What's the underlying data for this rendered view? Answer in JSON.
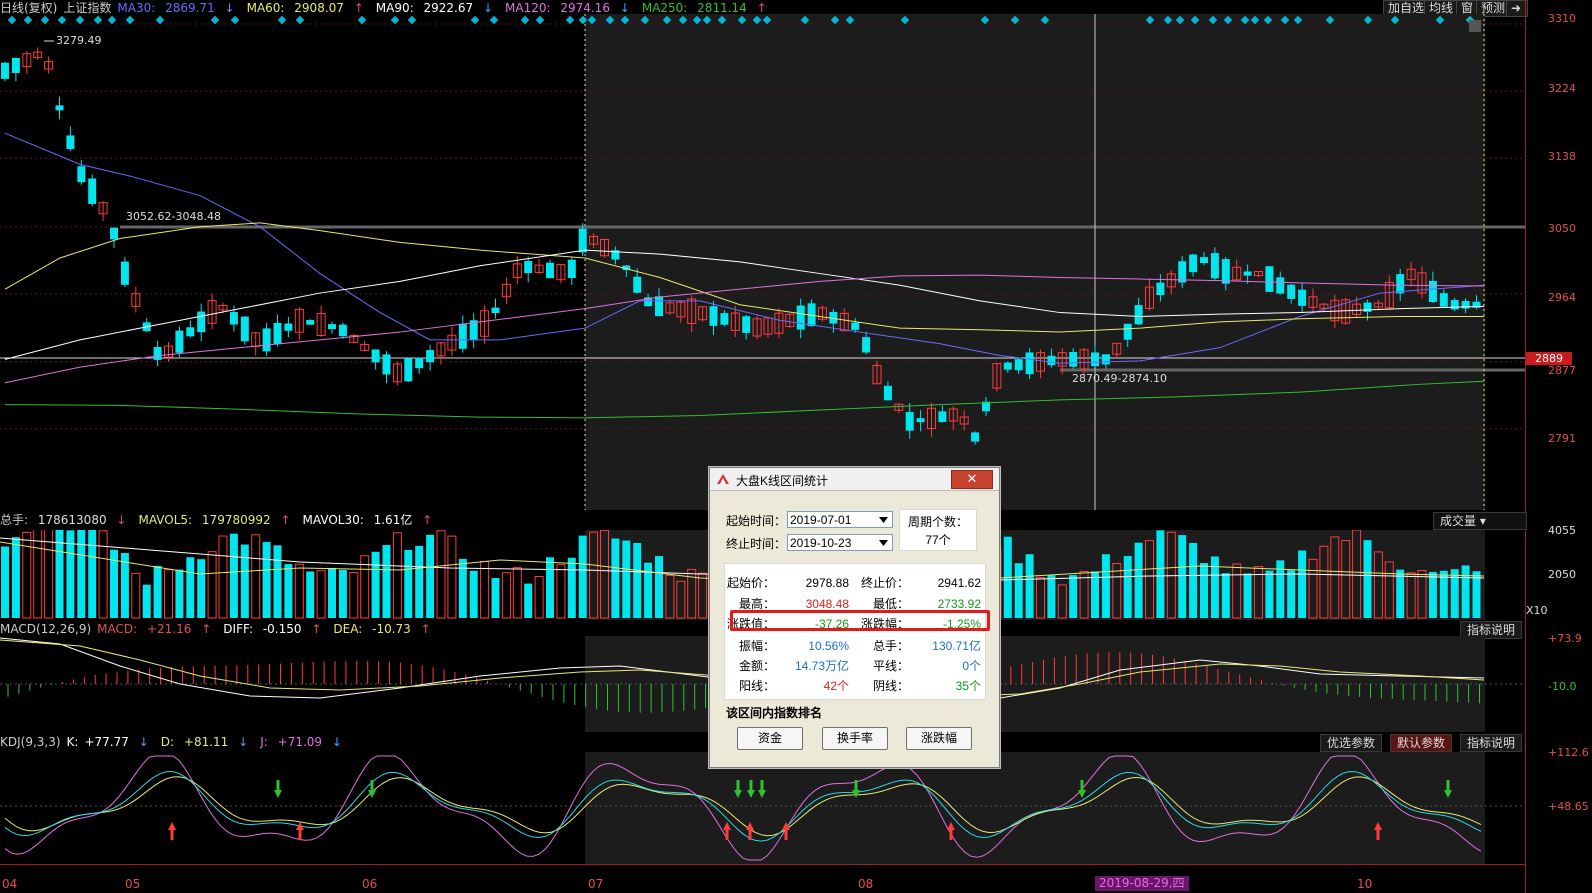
{
  "header": {
    "chart_title": "日线(复权)",
    "index_name": "上证指数",
    "ma": [
      {
        "label": "MA30:",
        "value": "2869.71",
        "dir": "↓",
        "color": "#6a6aff"
      },
      {
        "label": "MA60:",
        "value": "2908.07",
        "dir": "↑",
        "color": "#e8e870"
      },
      {
        "label": "MA90:",
        "value": "2922.67",
        "dir": "↓",
        "color": "#ffffff"
      },
      {
        "label": "MA120:",
        "value": "2974.16",
        "dir": "↓",
        "color": "#e070e0"
      },
      {
        "label": "MA250:",
        "value": "2811.14",
        "dir": "↑",
        "color": "#30c030"
      }
    ],
    "buttons": {
      "add_watch": "加自选",
      "avg_line": "均线",
      "window": "窗",
      "forecast": "预测"
    }
  },
  "price_axis": [
    "3310",
    "3224",
    "3138",
    "3050",
    "2964",
    "2889",
    "2877",
    "2791"
  ],
  "price_annotations": {
    "high": "3279.49",
    "gap_upper": "3052.62-3048.48",
    "gap_lower": "2870.49-2874.10"
  },
  "volume_panel": {
    "label": "总手:",
    "value": "178613080",
    "mavol5_label": "MAVOL5:",
    "mavol5": "179780992",
    "mavol30_label": "MAVOL30:",
    "mavol30": "1.61亿",
    "selector": "成交量",
    "axis": [
      "4055",
      "2050",
      "X10"
    ]
  },
  "macd_panel": {
    "label": "MACD(12,26,9)",
    "macd_label": "MACD:",
    "macd": "+21.16",
    "diff_label": "DIFF:",
    "diff": "-0.150",
    "dea_label": "DEA:",
    "dea": "-10.73",
    "help_btn": "指标说明",
    "axis": [
      "+73.9",
      "-10.0"
    ]
  },
  "kdj_panel": {
    "label": "KDJ(9,3,3)",
    "k_label": "K:",
    "k": "+77.77",
    "d_label": "D:",
    "d": "+81.11",
    "j_label": "J:",
    "j": "+71.09",
    "buttons": {
      "preferred": "优选参数",
      "default": "默认参数",
      "help": "指标说明"
    },
    "axis": [
      "+112.6",
      "+48.65"
    ]
  },
  "x_axis": [
    "04",
    "05",
    "06",
    "07",
    "08",
    "10"
  ],
  "cursor_date": "2019-08-29,四",
  "dialog": {
    "title": "大盘K线区间统计",
    "close": "✕",
    "start_label": "起始时间：",
    "start_value": "2019-07-01",
    "end_label": "终止时间：",
    "end_value": "2019-10-23",
    "period_label": "周期个数：",
    "period_value": "77个",
    "stats": {
      "start_price_label": "起始价：",
      "start_price": "2978.88",
      "end_price_label": "终止价：",
      "end_price": "2941.62",
      "high_label": "最高：",
      "high": "3048.48",
      "low_label": "最低：",
      "low": "2733.92",
      "change_label": "涨跌值：",
      "change": "-37.26",
      "pct_label": "涨跌幅：",
      "pct": "-1.25%",
      "amp_label": "振幅：",
      "amp": "10.56%",
      "vol_label": "总手：",
      "vol": "130.71亿",
      "amount_label": "金额：",
      "amount": "14.73万亿",
      "flat_label": "平线：",
      "flat": "0个",
      "up_label": "阳线：",
      "up": "42个",
      "down_label": "阴线：",
      "down": "35个"
    },
    "rank_title": "该区间内指数排名",
    "rank_buttons": [
      "资金",
      "换手率",
      "涨跌幅"
    ]
  },
  "chart_data": {
    "type": "candlestick",
    "index": "上证指数",
    "period": "daily",
    "y_range": [
      2733,
      3310
    ],
    "range_stats": {
      "start": "2019-07-01",
      "end": "2019-10-23",
      "start_price": 2978.88,
      "end_price": 2941.62,
      "high": 3048.48,
      "low": 2733.92,
      "change": -37.26,
      "pct": -1.25
    }
  }
}
